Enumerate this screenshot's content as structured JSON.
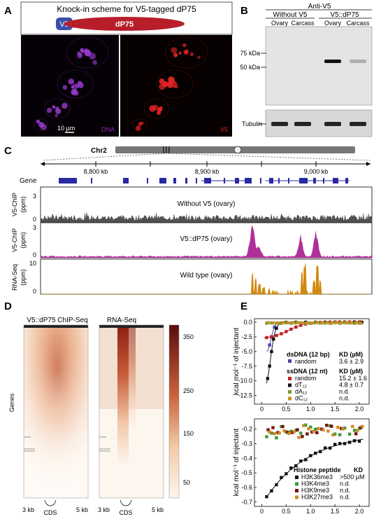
{
  "panelA": {
    "label": "A",
    "scheme_title": "Knock-in scheme for V5-tagged dP75",
    "tag_label": "V5",
    "protein_label": "dP75",
    "scale_bar": "10 µm",
    "channel_left": "DNA",
    "channel_right": "V5",
    "colors": {
      "tag": "#3b4ea8",
      "protein": "#b81e2a",
      "dna": "#8a2bb8",
      "v5": "#e02020"
    }
  },
  "panelB": {
    "label": "B",
    "title": "Anti-V5",
    "group1": "Without V5",
    "group2": "V5::dP75",
    "lanes": [
      "Ovary",
      "Carcass",
      "Ovary",
      "Carcass"
    ],
    "markers": [
      "75 kDa",
      "50 kDa"
    ],
    "loading": "Tubulin",
    "v5_band_intensity": [
      0,
      0,
      1.0,
      0.25
    ],
    "tubulin_band_intensity": [
      1,
      1,
      1,
      1
    ]
  },
  "panelC": {
    "label": "C",
    "chromosome": "Chr2",
    "x_ticks": [
      "8,800 kb",
      "8,900 kb",
      "9,000 kb"
    ],
    "gene_label": "Gene",
    "tracks": [
      {
        "ylabel1": "V5-ChIP",
        "ylabel2": "(ppm)",
        "ymax": "3",
        "ymin": "0",
        "title": "Without V5 (ovary)",
        "color": "#505050"
      },
      {
        "ylabel1": "V5-ChIP",
        "ylabel2": "(ppm)",
        "ymax": "3",
        "ymin": "0",
        "title": "V5::dP75 (ovary)",
        "color": "#b0309a"
      },
      {
        "ylabel1": "RNA-Seq",
        "ylabel2": "(ppm)",
        "ymax": "10",
        "ymin": "0",
        "title": "Wild type (ovary)",
        "color": "#d08a10"
      }
    ]
  },
  "panelD": {
    "label": "D",
    "heatmap1_title": "V5::dP75 ChIP-Seq",
    "heatmap2_title": "RNA-Seq",
    "ylabel": "Genes",
    "x_left": "3 kb",
    "x_mid": "CDS",
    "x_right": "5 kb",
    "colorbar_ticks": [
      "350",
      "250",
      "150",
      "50"
    ]
  },
  "panelE": {
    "label": "E",
    "ylabel": "kcal mol⁻¹ of injectant",
    "top": {
      "yticks": [
        "0.0",
        "-2.5",
        "-5.0",
        "-7.5",
        "-10.0",
        "-12.5"
      ],
      "xticks": [
        "0",
        "0.5",
        "1.0",
        "1.5",
        "2.0"
      ],
      "ds_header": "dsDNA (12 bp)",
      "ss_header": "ssDNA (12 nt)",
      "kd_header": "KD (µM)",
      "ds_rows": [
        {
          "name": "random",
          "kd": "3.6 ± 2.9",
          "color": "#5040b0"
        }
      ],
      "ss_rows": [
        {
          "name": "random",
          "kd": "15.2 ± 1.6",
          "color": "#c02020"
        },
        {
          "name": "dT₁₂",
          "kd": "4.8 ± 0.7",
          "color": "#111111"
        },
        {
          "name": "dA₁₂",
          "kd": "n.d.",
          "color": "#70a030"
        },
        {
          "name": "dC₁₂",
          "kd": "n.d.",
          "color": "#d08a20"
        }
      ]
    },
    "bottom": {
      "yticks": [
        "-0.2",
        "-0.3",
        "-0.4",
        "-0.5",
        "-0.6",
        "-0.7"
      ],
      "xticks": [
        "0",
        "0.5",
        "1.0",
        "1.5",
        "2.0"
      ],
      "header": "Histone peptide",
      "kd_header": "KD",
      "rows": [
        {
          "name": "H3K36me3",
          "kd": ">500 µM",
          "color": "#111111"
        },
        {
          "name": "H3K4me3",
          "kd": "n.d.",
          "color": "#3a9a3a"
        },
        {
          "name": "H3K9me3",
          "kd": "n.d.",
          "color": "#7a1010"
        },
        {
          "name": "H3K27me3",
          "kd": "n.d.",
          "color": "#d08a20"
        }
      ]
    }
  }
}
